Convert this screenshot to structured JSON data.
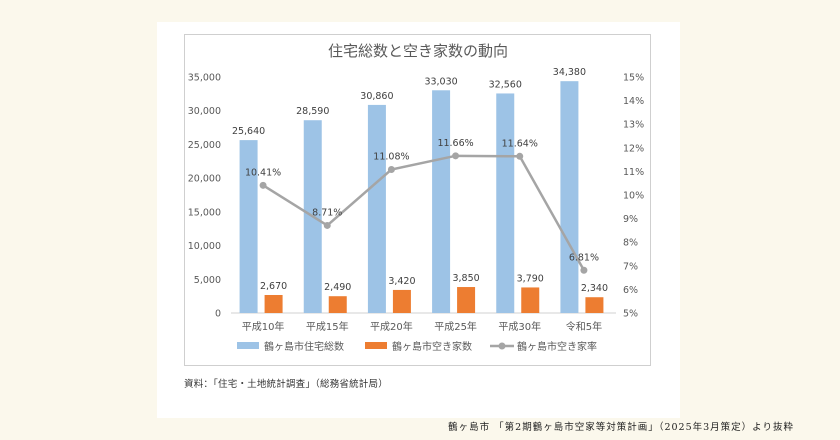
{
  "chart_data": {
    "type": "bar",
    "title": "住宅総数と空き家数の動向",
    "categories": [
      "平成10年",
      "平成15年",
      "平成20年",
      "平成25年",
      "平成30年",
      "令和5年"
    ],
    "series": [
      {
        "name": "鶴ヶ島市住宅総数",
        "type": "bar",
        "axis": "left",
        "color": "#9dc3e6",
        "values": [
          25640,
          28590,
          30860,
          33030,
          32560,
          34380
        ],
        "labels": [
          "25,640",
          "28,590",
          "30,860",
          "33,030",
          "32,560",
          "34,380"
        ]
      },
      {
        "name": "鶴ヶ島市空き家数",
        "type": "bar",
        "axis": "left",
        "color": "#ed7d31",
        "values": [
          2670,
          2490,
          3420,
          3850,
          3790,
          2340
        ],
        "labels": [
          "2,670",
          "2,490",
          "3,420",
          "3,850",
          "3,790",
          "2,340"
        ]
      },
      {
        "name": "鶴ヶ島市空き家率",
        "type": "line",
        "axis": "right",
        "color": "#a5a5a5",
        "values": [
          10.41,
          8.71,
          11.08,
          11.66,
          11.64,
          6.81
        ],
        "labels": [
          "10.41%",
          "8.71%",
          "11.08%",
          "11.66%",
          "11.64%",
          "6.81%"
        ]
      }
    ],
    "y_left": {
      "ylim": [
        0,
        35000
      ],
      "ticks": [
        "0",
        "5,000",
        "10,000",
        "15,000",
        "20,000",
        "25,000",
        "30,000",
        "35,000"
      ]
    },
    "y_right": {
      "ylim": [
        5,
        15
      ],
      "ticks": [
        "5%",
        "6%",
        "7%",
        "8%",
        "9%",
        "10%",
        "11%",
        "12%",
        "13%",
        "14%",
        "15%"
      ]
    },
    "grid": false,
    "legend": "bottom"
  },
  "source_note": "資料：「住宅・土地統計調査」（総務省統計局）",
  "credit": "鶴ヶ島市 「第2期鶴ヶ島市空家等対策計画」（2025年3月策定）より抜粋"
}
